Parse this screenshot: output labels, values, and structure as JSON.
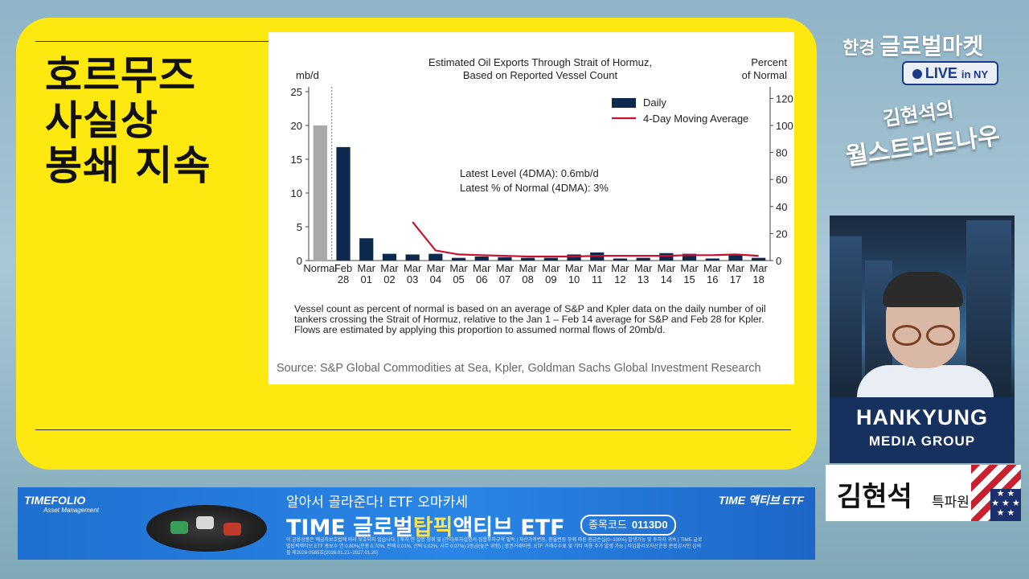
{
  "headline": {
    "lines": [
      "호르무즈",
      "사실상",
      "봉쇄 지속"
    ]
  },
  "chart_data": {
    "type": "bar",
    "title": "Estimated Oil Exports Through Strait of Hormuz,",
    "subtitle": "Based on Reported Vessel Count",
    "ylabel_left": "mb/d",
    "ylabel_right_line1": "Percent",
    "ylabel_right_line2": "of Normal",
    "ylim_left": [
      0,
      25
    ],
    "yticks_left": [
      "0",
      "5",
      "10",
      "15",
      "20",
      "25"
    ],
    "ylim_right": [
      0,
      125
    ],
    "yticks_right": [
      "0",
      "20",
      "40",
      "60",
      "80",
      "100",
      "120"
    ],
    "categories": [
      {
        "top": "Normal",
        "bottom": ""
      },
      {
        "top": "Feb",
        "bottom": "28"
      },
      {
        "top": "Mar",
        "bottom": "01"
      },
      {
        "top": "Mar",
        "bottom": "02"
      },
      {
        "top": "Mar",
        "bottom": "03"
      },
      {
        "top": "Mar",
        "bottom": "04"
      },
      {
        "top": "Mar",
        "bottom": "05"
      },
      {
        "top": "Mar",
        "bottom": "06"
      },
      {
        "top": "Mar",
        "bottom": "07"
      },
      {
        "top": "Mar",
        "bottom": "08"
      },
      {
        "top": "Mar",
        "bottom": "09"
      },
      {
        "top": "Mar",
        "bottom": "10"
      },
      {
        "top": "Mar",
        "bottom": "11"
      },
      {
        "top": "Mar",
        "bottom": "12"
      },
      {
        "top": "Mar",
        "bottom": "13"
      },
      {
        "top": "Mar",
        "bottom": "14"
      },
      {
        "top": "Mar",
        "bottom": "15"
      },
      {
        "top": "Mar",
        "bottom": "16"
      },
      {
        "top": "Mar",
        "bottom": "17"
      },
      {
        "top": "Mar",
        "bottom": "18"
      }
    ],
    "series": [
      {
        "name": "Daily",
        "color": "#0d2a4e",
        "values": [
          20,
          16.8,
          3.3,
          1.0,
          0.9,
          1.0,
          0.4,
          0.6,
          0.5,
          0.4,
          0.4,
          0.9,
          1.2,
          0.3,
          0.4,
          1.1,
          1.0,
          0.3,
          0.8,
          0.4
        ]
      },
      {
        "name": "4-Day Moving Average",
        "color": "#c8102e",
        "type": "line",
        "values": [
          null,
          null,
          null,
          null,
          28.5,
          7.5,
          4.5,
          4.0,
          3.5,
          3.0,
          3.0,
          3.0,
          3.5,
          3.5,
          3.5,
          3.5,
          4.0,
          4.0,
          4.5,
          3.5
        ]
      }
    ],
    "normal_bar_color": "#a9a9ab",
    "annotations": [
      "Latest Level (4DMA): 0.6mb/d",
      "Latest % of Normal (4DMA): 3%"
    ],
    "legend_position": "top-right",
    "grid": false,
    "note": "Vessel count as percent of normal is based on an average of S&P and Kpler data on the daily number of oil tankers crossing the Strait of Hormuz, relative to the Jan 1 – Feb 14 average for S&P and Feb 28 for Kpler. Flows are estimated by applying this proportion to assumed normal flows of 20mb/d.",
    "source": "Source: S&P Global Commodities at Sea, Kpler, Goldman Sachs Global Investment Research"
  },
  "branding": {
    "brand_lead": "한경",
    "brand_name": "글로벌마켓",
    "live": "LIVE",
    "live_in": "in NY",
    "show_line1": "김현석의",
    "show_line2": "월스트리트나우",
    "media_line1": "HANKYUNG",
    "media_line2": "MEDIA GROUP",
    "reporter_name": "김현석",
    "reporter_rank": "특파원"
  },
  "ad": {
    "logo": "TIMEFOLIO",
    "logo_sub": "Asset Management",
    "line1": "알아서 골라준다! ETF 오마카세",
    "line2_a": "TIME 글로벌",
    "line2_hl": "탑픽",
    "line2_b": "액티브 ETF",
    "code_label": "종목코드",
    "code_value": "0113D0",
    "right_logo": "TIME 액티브 ETF",
    "fine_print": "이 금융상품은 예금자보호법에 따라 보호되지 않습니다. | 투자 전 설명 청취 및 (간이)투자설명서·집합투자규약 필독 | 자산가격변동, 환율변동 등에 따른 원금손실(0~100%) 발생가능 및 투자자 귀속 | TIME 글로벌탑픽액티브 ETF 총보수 연 0.80%(운용 0.70%, 판매 0.01%, 신탁 0.02%, 사무 0.07%) 2등급(높은 위험) | 증권거래비용, ETF 거래수수료 및 기타 비용 추가 발생 가능 | 타임폴리오자산운용 준법감시인 심의필 제2026-0565호(2026.01.21~2027.01.20)"
  }
}
